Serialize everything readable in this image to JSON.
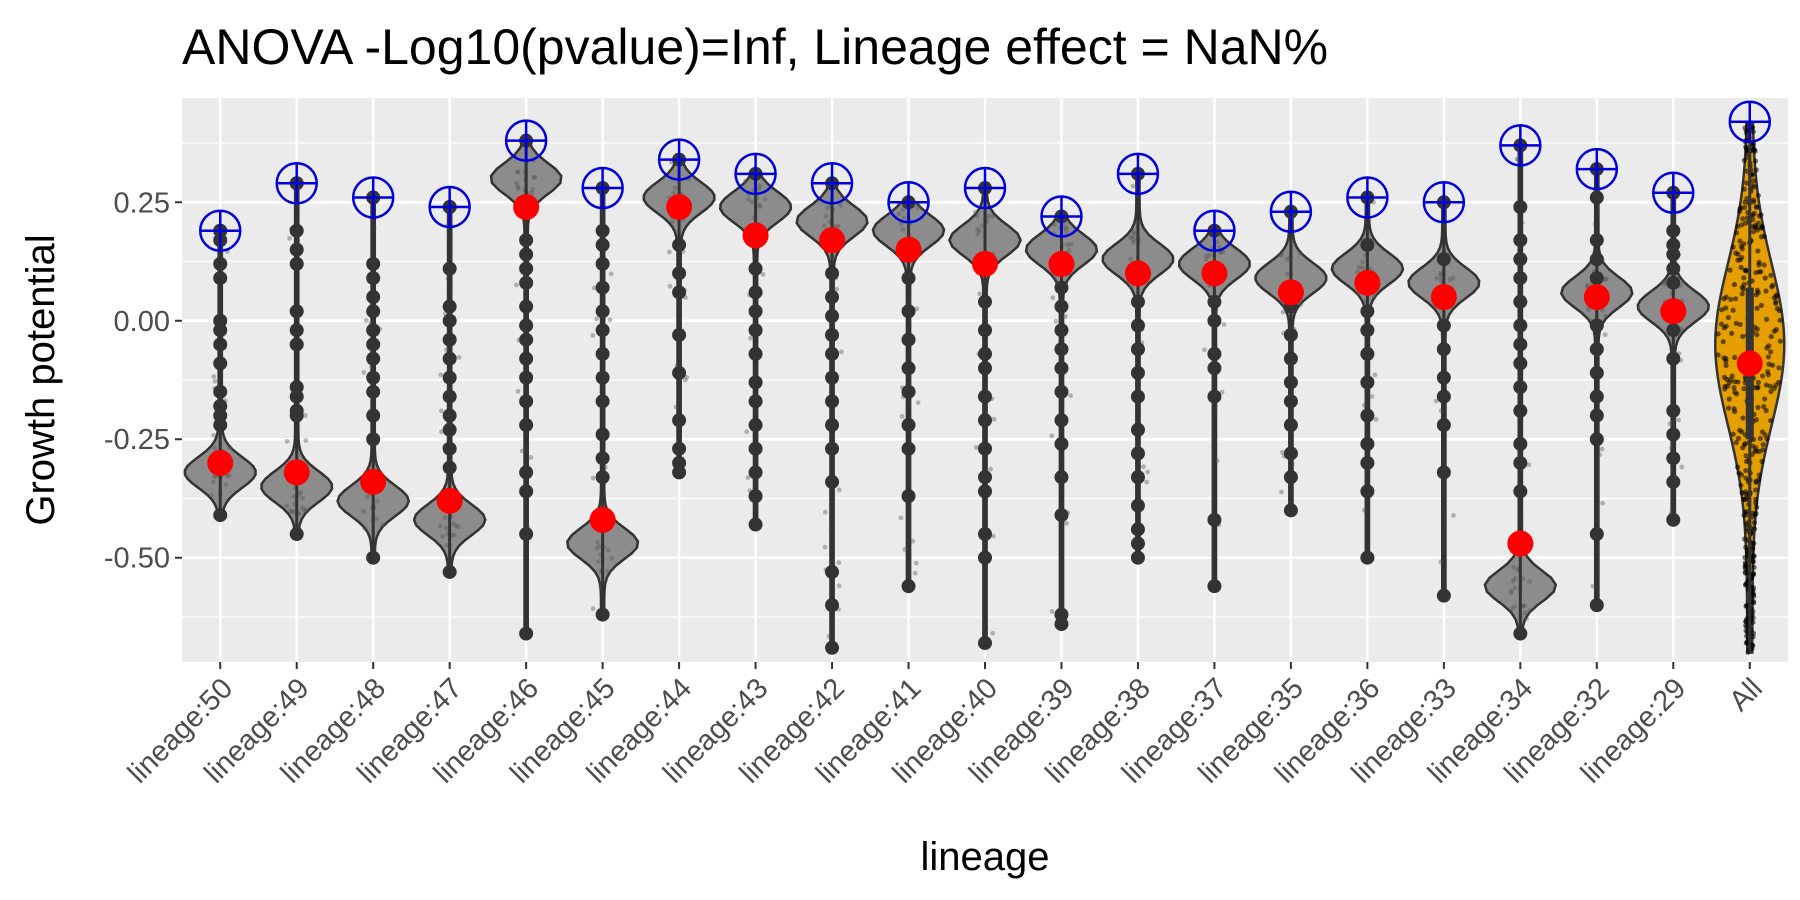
{
  "chart_data": {
    "type": "violin",
    "title": "ANOVA -Log10(pvalue)=Inf, Lineage effect = NaN%",
    "xlabel": "lineage",
    "ylabel": "Growth potential",
    "ylim": [
      -0.72,
      0.47
    ],
    "yticks": [
      {
        "value": 0.25,
        "label": "0.25"
      },
      {
        "value": 0.0,
        "label": "0.00"
      },
      {
        "value": -0.25,
        "label": "-0.25"
      },
      {
        "value": -0.5,
        "label": "-0.50"
      }
    ],
    "grid": true,
    "colors": {
      "panel": "#ebebeb",
      "grid": "#ffffff",
      "violin": "#8c8c8c",
      "violin_all": "#e69f00",
      "point": "#333333",
      "mean": "#ff0000",
      "max_marker": "#0000dd"
    },
    "categories": [
      "lineage:50",
      "lineage:49",
      "lineage:48",
      "lineage:47",
      "lineage:46",
      "lineage:45",
      "lineage:44",
      "lineage:43",
      "lineage:42",
      "lineage:41",
      "lineage:40",
      "lineage:39",
      "lineage:38",
      "lineage:37",
      "lineage:35",
      "lineage:36",
      "lineage:33",
      "lineage:34",
      "lineage:32",
      "lineage:29",
      "All"
    ],
    "series": [
      {
        "category": "lineage:50",
        "mode": -0.32,
        "mean": -0.3,
        "max": 0.19,
        "min": -0.41,
        "outliers": [
          0.19,
          0.17,
          0.12,
          0.09,
          0.0,
          -0.02,
          -0.05,
          -0.09,
          -0.15,
          -0.18,
          -0.2,
          -0.22
        ]
      },
      {
        "category": "lineage:49",
        "mode": -0.35,
        "mean": -0.32,
        "max": 0.29,
        "min": -0.45,
        "outliers": [
          0.29,
          0.19,
          0.15,
          0.12,
          0.02,
          -0.02,
          -0.05,
          -0.14,
          -0.16,
          -0.19,
          -0.2
        ]
      },
      {
        "category": "lineage:48",
        "mode": -0.38,
        "mean": -0.34,
        "max": 0.26,
        "min": -0.5,
        "outliers": [
          0.26,
          0.12,
          0.09,
          0.05,
          0.02,
          -0.02,
          -0.05,
          -0.08,
          -0.12,
          -0.15,
          -0.2,
          -0.25
        ]
      },
      {
        "category": "lineage:47",
        "mode": -0.42,
        "mean": -0.38,
        "max": 0.24,
        "min": -0.53,
        "outliers": [
          0.24,
          0.11,
          0.03,
          0.0,
          -0.04,
          -0.08,
          -0.12,
          -0.16,
          -0.2,
          -0.23,
          -0.27,
          -0.31
        ]
      },
      {
        "category": "lineage:46",
        "mode": 0.3,
        "mean": 0.24,
        "max": 0.38,
        "min": -0.66,
        "outliers": [
          0.17,
          0.14,
          0.11,
          0.08,
          0.03,
          -0.01,
          -0.04,
          -0.08,
          -0.12,
          -0.17,
          -0.22,
          -0.32,
          -0.36,
          -0.45
        ]
      },
      {
        "category": "lineage:45",
        "mode": -0.47,
        "mean": -0.42,
        "max": 0.28,
        "min": -0.62,
        "outliers": [
          0.19,
          0.16,
          0.12,
          0.07,
          0.02,
          -0.02,
          -0.07,
          -0.12,
          -0.17,
          -0.24,
          -0.29,
          -0.33
        ]
      },
      {
        "category": "lineage:44",
        "mode": 0.26,
        "mean": 0.24,
        "max": 0.34,
        "min": -0.32,
        "outliers": [
          0.16,
          0.1,
          0.06,
          -0.03,
          -0.11,
          -0.21,
          -0.27,
          -0.3
        ]
      },
      {
        "category": "lineage:43",
        "mode": 0.24,
        "mean": 0.18,
        "max": 0.31,
        "min": -0.43,
        "outliers": [
          0.11,
          0.06,
          0.02,
          -0.02,
          -0.07,
          -0.13,
          -0.17,
          -0.22,
          -0.27,
          -0.32,
          -0.37
        ]
      },
      {
        "category": "lineage:42",
        "mode": 0.21,
        "mean": 0.17,
        "max": 0.29,
        "min": -0.69,
        "outliers": [
          0.1,
          0.05,
          0.01,
          -0.03,
          -0.07,
          -0.12,
          -0.17,
          -0.22,
          -0.27,
          -0.34,
          -0.53,
          -0.6
        ]
      },
      {
        "category": "lineage:41",
        "mode": 0.19,
        "mean": 0.15,
        "max": 0.25,
        "min": -0.56,
        "outliers": [
          0.09,
          0.02,
          -0.04,
          -0.1,
          -0.15,
          -0.22,
          -0.27,
          -0.37
        ]
      },
      {
        "category": "lineage:40",
        "mode": 0.17,
        "mean": 0.12,
        "max": 0.28,
        "min": -0.68,
        "outliers": [
          0.04,
          -0.02,
          -0.07,
          -0.1,
          -0.16,
          -0.21,
          -0.27,
          -0.33,
          -0.36,
          -0.45,
          -0.5
        ]
      },
      {
        "category": "lineage:39",
        "mode": 0.15,
        "mean": 0.12,
        "max": 0.22,
        "min": -0.64,
        "outliers": [
          0.07,
          0.03,
          -0.02,
          -0.06,
          -0.1,
          -0.15,
          -0.21,
          -0.26,
          -0.33,
          -0.41,
          -0.62
        ]
      },
      {
        "category": "lineage:38",
        "mode": 0.13,
        "mean": 0.1,
        "max": 0.31,
        "min": -0.5,
        "outliers": [
          0.04,
          -0.01,
          -0.06,
          -0.11,
          -0.16,
          -0.23,
          -0.28,
          -0.33,
          -0.39,
          -0.44,
          -0.47
        ]
      },
      {
        "category": "lineage:37",
        "mode": 0.12,
        "mean": 0.1,
        "max": 0.19,
        "min": -0.56,
        "outliers": [
          0.04,
          0.0,
          -0.07,
          -0.1,
          -0.16,
          -0.42
        ]
      },
      {
        "category": "lineage:35",
        "mode": 0.09,
        "mean": 0.06,
        "max": 0.23,
        "min": -0.4,
        "outliers": [
          0.03,
          -0.03,
          -0.08,
          -0.13,
          -0.17,
          -0.22,
          -0.28,
          -0.33
        ]
      },
      {
        "category": "lineage:36",
        "mode": 0.11,
        "mean": 0.08,
        "max": 0.26,
        "min": -0.5,
        "outliers": [
          0.16,
          0.02,
          -0.02,
          -0.07,
          -0.13,
          -0.2,
          -0.26,
          -0.3,
          -0.36
        ]
      },
      {
        "category": "lineage:33",
        "mode": 0.08,
        "mean": 0.05,
        "max": 0.25,
        "min": -0.58,
        "outliers": [
          0.13,
          -0.01,
          -0.06,
          -0.12,
          -0.16,
          -0.22,
          -0.32
        ]
      },
      {
        "category": "lineage:34",
        "mode": -0.56,
        "mean": -0.47,
        "max": 0.37,
        "min": -0.66,
        "outliers": [
          0.24,
          0.17,
          0.13,
          0.09,
          0.04,
          -0.01,
          -0.05,
          -0.09,
          -0.14,
          -0.19,
          -0.26,
          -0.3,
          -0.36
        ]
      },
      {
        "category": "lineage:32",
        "mode": 0.06,
        "mean": 0.05,
        "max": 0.32,
        "min": -0.6,
        "outliers": [
          0.26,
          0.17,
          0.13,
          0.09,
          -0.01,
          -0.06,
          -0.11,
          -0.16,
          -0.2,
          -0.25,
          -0.45
        ]
      },
      {
        "category": "lineage:29",
        "mode": 0.03,
        "mean": 0.02,
        "max": 0.27,
        "min": -0.42,
        "outliers": [
          0.19,
          0.16,
          0.14,
          0.11,
          0.08,
          -0.02,
          -0.08,
          -0.19,
          -0.24,
          -0.29,
          -0.34
        ]
      },
      {
        "category": "All",
        "mode": -0.05,
        "mean": -0.09,
        "max": 0.42,
        "min": -0.7,
        "outliers": []
      }
    ]
  }
}
